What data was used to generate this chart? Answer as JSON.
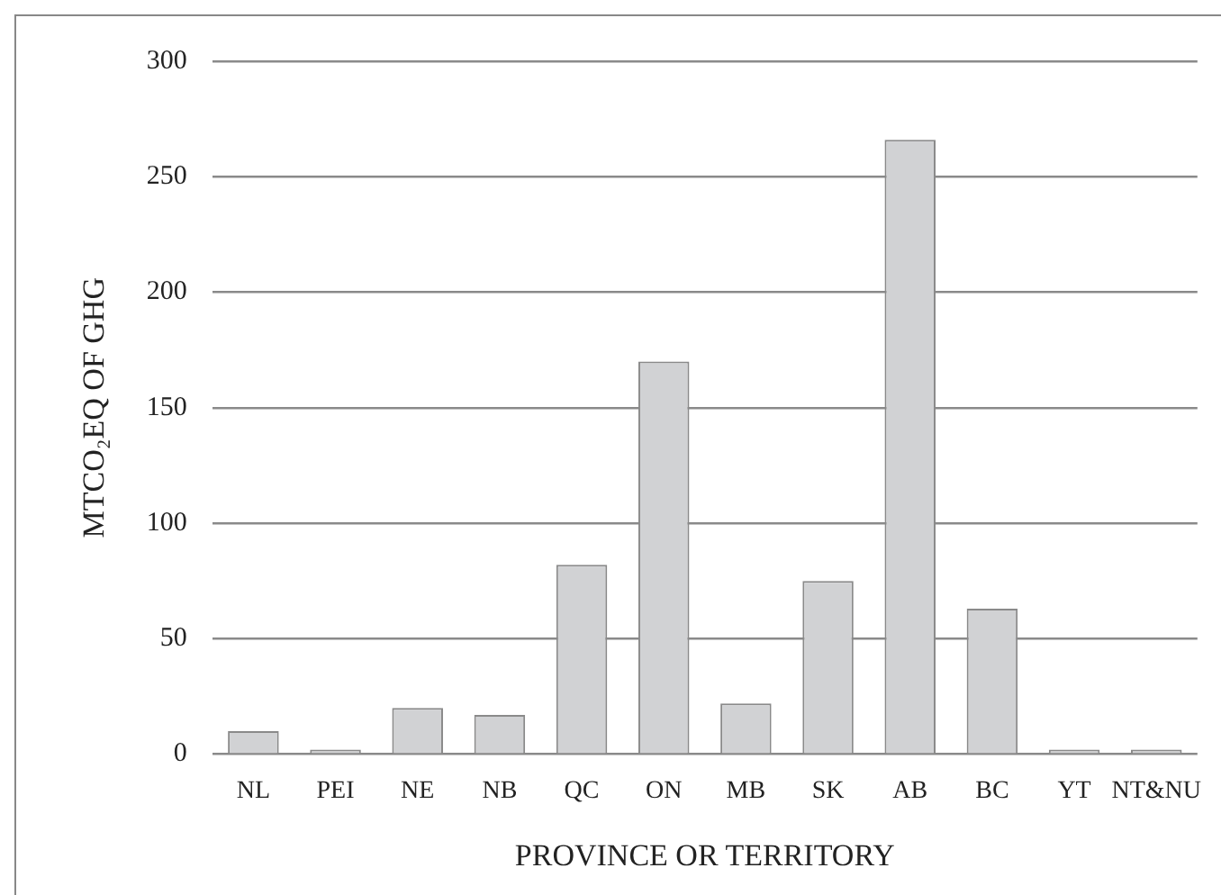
{
  "chart_data": {
    "type": "bar",
    "xlabel": "PROVINCE OR TERRITORY",
    "ylabel": "MTCO₂EQ OF GHG",
    "categories": [
      "NL",
      "PEI",
      "NE",
      "NB",
      "QC",
      "ON",
      "MB",
      "SK",
      "AB",
      "BC",
      "YT",
      "NT&NU"
    ],
    "values": [
      10,
      2,
      20,
      17,
      82,
      170,
      22,
      75,
      266,
      63,
      2,
      2
    ],
    "color": "#d1d2d4",
    "ylim": [
      0,
      300
    ],
    "yticks": [
      0,
      50,
      100,
      150,
      200,
      250,
      300
    ],
    "grid": "y"
  }
}
